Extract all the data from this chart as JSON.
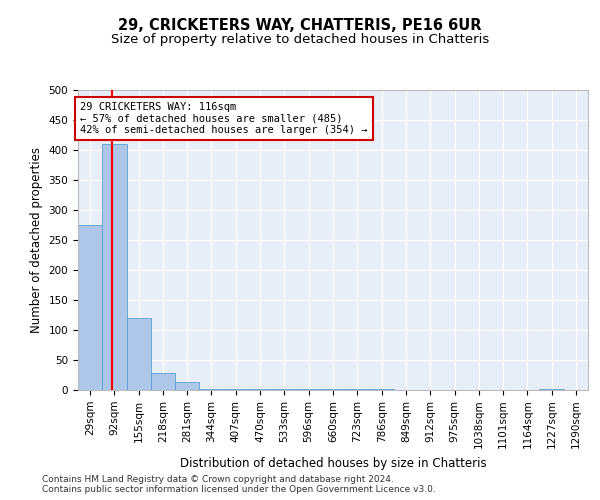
{
  "title1": "29, CRICKETERS WAY, CHATTERIS, PE16 6UR",
  "title2": "Size of property relative to detached houses in Chatteris",
  "xlabel": "Distribution of detached houses by size in Chatteris",
  "ylabel": "Number of detached properties",
  "bin_labels": [
    "29sqm",
    "92sqm",
    "155sqm",
    "218sqm",
    "281sqm",
    "344sqm",
    "407sqm",
    "470sqm",
    "533sqm",
    "596sqm",
    "660sqm",
    "723sqm",
    "786sqm",
    "849sqm",
    "912sqm",
    "975sqm",
    "1038sqm",
    "1101sqm",
    "1164sqm",
    "1227sqm",
    "1290sqm"
  ],
  "bin_edges": [
    29,
    92,
    155,
    218,
    281,
    344,
    407,
    470,
    533,
    596,
    660,
    723,
    786,
    849,
    912,
    975,
    1038,
    1101,
    1164,
    1227,
    1290
  ],
  "bar_heights": [
    275,
    410,
    120,
    28,
    14,
    2,
    1,
    1,
    1,
    1,
    1,
    1,
    1,
    0,
    0,
    0,
    0,
    0,
    0,
    2
  ],
  "bar_color": "#aec6e8",
  "bar_edge_color": "#5a9fd4",
  "red_line_x": 116,
  "annotation_line1": "29 CRICKETERS WAY: 116sqm",
  "annotation_line2": "← 57% of detached houses are smaller (485)",
  "annotation_line3": "42% of semi-detached houses are larger (354) →",
  "annotation_box_color": "#ffffff",
  "annotation_box_edge_color": "#cc0000",
  "footnote1": "Contains HM Land Registry data © Crown copyright and database right 2024.",
  "footnote2": "Contains public sector information licensed under the Open Government Licence v3.0.",
  "ylim": [
    0,
    500
  ],
  "yticks": [
    0,
    50,
    100,
    150,
    200,
    250,
    300,
    350,
    400,
    450,
    500
  ],
  "background_color": "#e8eef7",
  "grid_color": "#ffffff",
  "title1_fontsize": 10.5,
  "title2_fontsize": 9.5,
  "xlabel_fontsize": 8.5,
  "ylabel_fontsize": 8.5,
  "tick_fontsize": 7.5,
  "annot_fontsize": 7.5,
  "footnote_fontsize": 6.5
}
